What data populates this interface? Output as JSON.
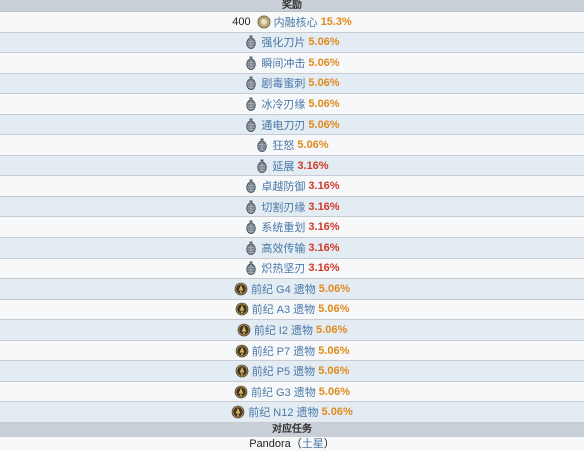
{
  "header": {
    "rewards_title": "奖励"
  },
  "rewards": [
    {
      "qty": "400",
      "icon": "endo-icon",
      "name": "内融核心",
      "pct": "15.3%",
      "pct_color": "orange",
      "bg": "light"
    },
    {
      "qty": "",
      "icon": "mod-grenade-icon",
      "name": "强化刀片",
      "pct": "5.06%",
      "pct_color": "orange",
      "bg": "blue"
    },
    {
      "qty": "",
      "icon": "mod-grenade-icon",
      "name": "瞬间冲击",
      "pct": "5.06%",
      "pct_color": "orange",
      "bg": "light"
    },
    {
      "qty": "",
      "icon": "mod-grenade-icon",
      "name": "剧毒蜜刺",
      "pct": "5.06%",
      "pct_color": "orange",
      "bg": "blue"
    },
    {
      "qty": "",
      "icon": "mod-grenade-icon",
      "name": "冰冷刃缘",
      "pct": "5.06%",
      "pct_color": "orange",
      "bg": "light"
    },
    {
      "qty": "",
      "icon": "mod-grenade-icon",
      "name": "通电刀刃",
      "pct": "5.06%",
      "pct_color": "orange",
      "bg": "blue"
    },
    {
      "qty": "",
      "icon": "mod-grenade-icon",
      "name": "狂怒",
      "pct": "5.06%",
      "pct_color": "orange",
      "bg": "light"
    },
    {
      "qty": "",
      "icon": "mod-grenade-icon",
      "name": "延展",
      "pct": "3.16%",
      "pct_color": "red",
      "bg": "blue"
    },
    {
      "qty": "",
      "icon": "mod-grenade-icon",
      "name": "卓越防御",
      "pct": "3.16%",
      "pct_color": "red",
      "bg": "light"
    },
    {
      "qty": "",
      "icon": "mod-grenade-icon",
      "name": "切割刃缘",
      "pct": "3.16%",
      "pct_color": "red",
      "bg": "blue"
    },
    {
      "qty": "",
      "icon": "mod-grenade-icon",
      "name": "系统重划",
      "pct": "3.16%",
      "pct_color": "red",
      "bg": "light"
    },
    {
      "qty": "",
      "icon": "mod-grenade-icon",
      "name": "高效传输",
      "pct": "3.16%",
      "pct_color": "red",
      "bg": "blue"
    },
    {
      "qty": "",
      "icon": "mod-grenade-icon",
      "name": "炽热坚刃",
      "pct": "3.16%",
      "pct_color": "red",
      "bg": "light"
    },
    {
      "qty": "",
      "icon": "relic-icon",
      "name": "前纪 G4 遗物",
      "pct": "5.06%",
      "pct_color": "orange",
      "bg": "blue"
    },
    {
      "qty": "",
      "icon": "relic-icon",
      "name": "前纪 A3 遗物",
      "pct": "5.06%",
      "pct_color": "orange",
      "bg": "light"
    },
    {
      "qty": "",
      "icon": "relic-icon",
      "name": "前纪 I2 遗物",
      "pct": "5.06%",
      "pct_color": "orange",
      "bg": "blue"
    },
    {
      "qty": "",
      "icon": "relic-icon",
      "name": "前纪 P7 遗物",
      "pct": "5.06%",
      "pct_color": "orange",
      "bg": "light"
    },
    {
      "qty": "",
      "icon": "relic-icon",
      "name": "前纪 P5 遗物",
      "pct": "5.06%",
      "pct_color": "orange",
      "bg": "blue"
    },
    {
      "qty": "",
      "icon": "relic-icon",
      "name": "前纪 G3 遗物",
      "pct": "5.06%",
      "pct_color": "orange",
      "bg": "light"
    },
    {
      "qty": "",
      "icon": "relic-icon",
      "name": "前纪 N12 遗物",
      "pct": "5.06%",
      "pct_color": "orange",
      "bg": "blue"
    }
  ],
  "missions": {
    "title": "对应任务",
    "name": "Pandora",
    "open_paren": "（",
    "planet": "土星",
    "close_paren": "）"
  },
  "colors": {
    "orange": "#e08a1c",
    "red": "#d03a2a",
    "link": "#4a78a8",
    "header_bg": "#c9cfd6",
    "row_light": "#f7f8fa",
    "row_blue": "#e3ebf3"
  }
}
